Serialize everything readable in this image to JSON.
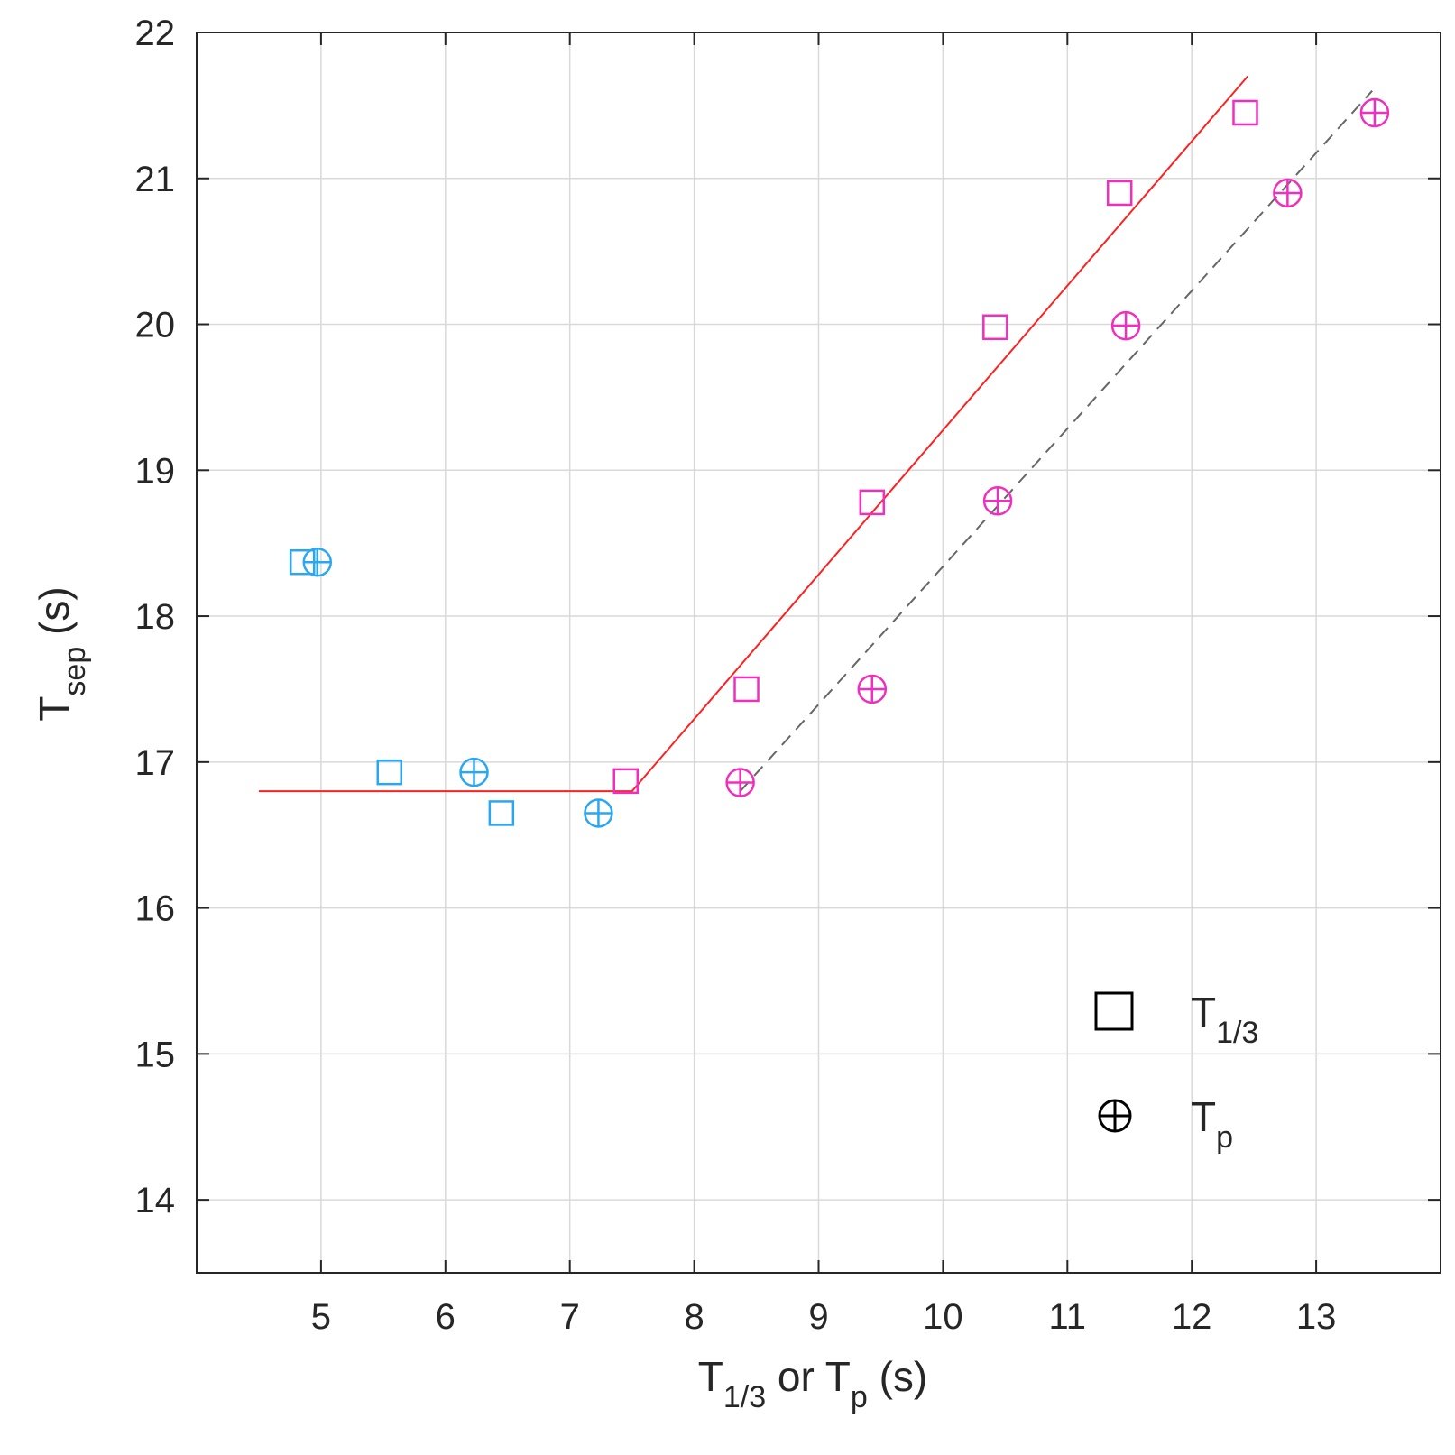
{
  "chart_data": {
    "type": "scatter",
    "xlabel": {
      "main": "T",
      "sub": "1/3",
      "mid": " or  T",
      "sub2": "p",
      "unit": " (s)"
    },
    "ylabel": {
      "main": "T",
      "sub": "sep",
      "unit": " (s)"
    },
    "xlim": [
      4,
      14
    ],
    "ylim": [
      13.5,
      22
    ],
    "xticks": [
      5,
      6,
      7,
      8,
      9,
      10,
      11,
      12,
      13
    ],
    "yticks": [
      14,
      15,
      16,
      17,
      18,
      19,
      20,
      21,
      22
    ],
    "grid": true,
    "legend_position": "bottom-right",
    "colors": {
      "low_regime": "#2aa7f0",
      "high_regime": "#f02fbd",
      "fit_line": "#ff2020",
      "dashed_fit": "#666666",
      "grid": "#d9d9d9",
      "axis": "#262626"
    },
    "series": [
      {
        "name": "T1/3",
        "legend_main": "T",
        "legend_sub": "1/3",
        "marker": "square",
        "points": [
          {
            "x": 4.85,
            "y": 18.37,
            "group": "low"
          },
          {
            "x": 5.55,
            "y": 16.93,
            "group": "low"
          },
          {
            "x": 6.45,
            "y": 16.65,
            "group": "low"
          },
          {
            "x": 7.45,
            "y": 16.87,
            "group": "high"
          },
          {
            "x": 8.42,
            "y": 17.5,
            "group": "high"
          },
          {
            "x": 9.43,
            "y": 18.78,
            "group": "high"
          },
          {
            "x": 10.42,
            "y": 19.98,
            "group": "high"
          },
          {
            "x": 11.42,
            "y": 20.9,
            "group": "high"
          },
          {
            "x": 12.43,
            "y": 21.45,
            "group": "high"
          }
        ]
      },
      {
        "name": "Tp",
        "legend_main": "T",
        "legend_sub": "p",
        "marker": "circle-plus",
        "points": [
          {
            "x": 4.97,
            "y": 18.37,
            "group": "low"
          },
          {
            "x": 6.23,
            "y": 16.93,
            "group": "low"
          },
          {
            "x": 7.23,
            "y": 16.65,
            "group": "low"
          },
          {
            "x": 8.37,
            "y": 16.86,
            "group": "high"
          },
          {
            "x": 9.43,
            "y": 17.5,
            "group": "high"
          },
          {
            "x": 10.44,
            "y": 18.79,
            "group": "high"
          },
          {
            "x": 11.47,
            "y": 19.99,
            "group": "high"
          },
          {
            "x": 12.77,
            "y": 20.9,
            "group": "high"
          },
          {
            "x": 13.47,
            "y": 21.45,
            "group": "high"
          }
        ]
      }
    ],
    "fit_lines": [
      {
        "style": "solid",
        "color": "fit_line",
        "points": [
          [
            4.5,
            16.8
          ],
          [
            7.5,
            16.8
          ],
          [
            12.45,
            21.7
          ]
        ]
      },
      {
        "style": "dashed",
        "color": "dashed_fit",
        "points": [
          [
            8.37,
            16.8
          ],
          [
            13.45,
            21.6
          ]
        ]
      }
    ]
  }
}
